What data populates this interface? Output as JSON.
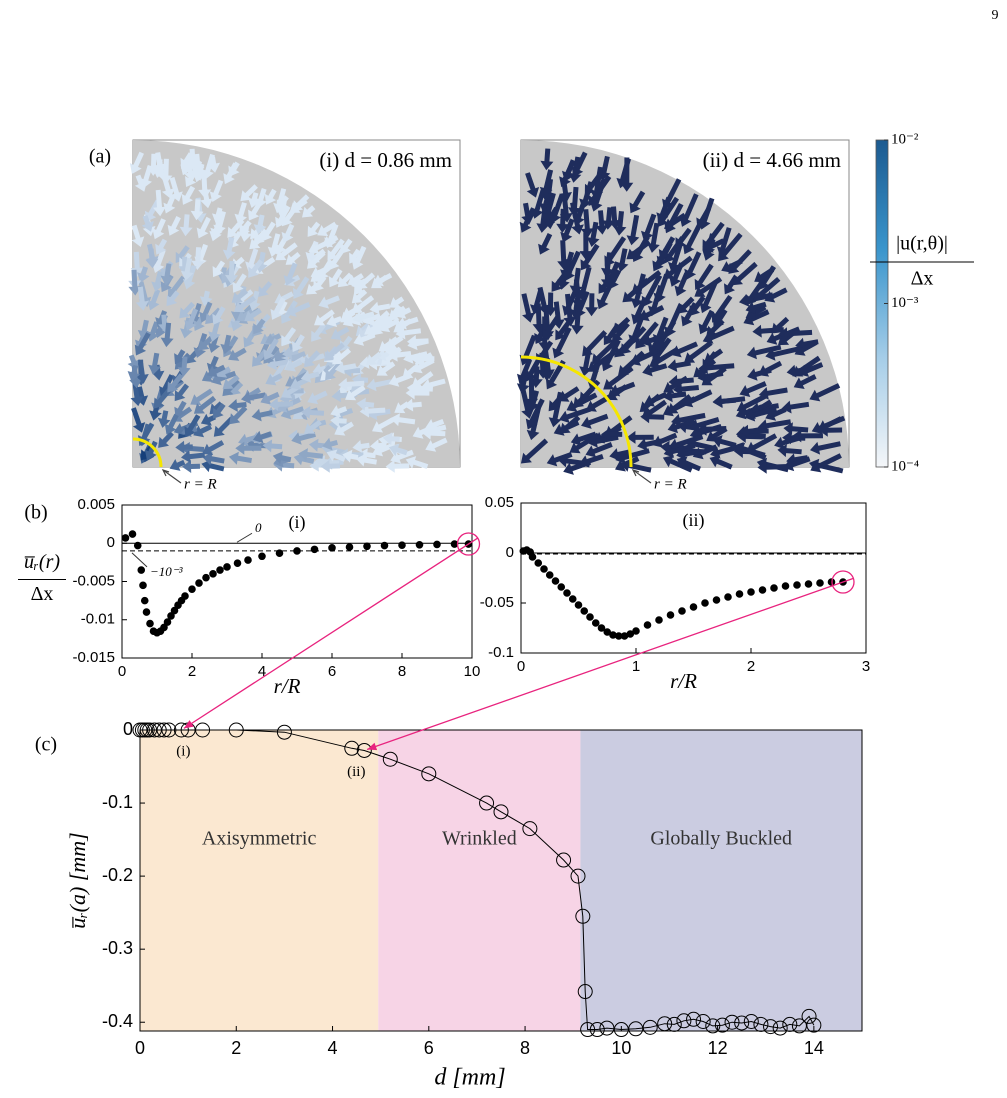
{
  "page_number": "9",
  "panel_labels": [
    "(a)",
    "(b)",
    "(c)"
  ],
  "chart_data": [
    {
      "type": "quiver",
      "title": "(i) d = 0.86 mm",
      "annotation": "r = R",
      "colors": [
        "#163f7a",
        "#dbe8f5"
      ]
    },
    {
      "type": "quiver",
      "title": "(ii) d = 4.66 mm",
      "annotation": "r = R",
      "colors": [
        "#1f2d5c",
        "#1f2d5c"
      ]
    },
    {
      "type": "colorbar",
      "label": [
        "|u(r,θ)|",
        "Δx"
      ],
      "log_scale": true,
      "ylim": [
        0.0001,
        0.01
      ],
      "yticks": [
        {
          "value": 0.01,
          "label": "10⁻²"
        },
        {
          "value": 0.001,
          "label": "10⁻³"
        },
        {
          "value": 0.0001,
          "label": "10⁻⁴"
        }
      ],
      "colors": [
        "#f4f6f9",
        "#a5cde8",
        "#3a95cc",
        "#1c5a90"
      ]
    },
    {
      "type": "scatter",
      "title": "(i)",
      "xlabel": "r/R",
      "ylabel": [
        "u̅ᵣ(r)",
        "Δx"
      ],
      "marker": "filled",
      "x": [
        0.1,
        0.3,
        0.45,
        0.55,
        0.6,
        0.65,
        0.7,
        0.8,
        0.9,
        1.0,
        1.1,
        1.2,
        1.3,
        1.4,
        1.5,
        1.6,
        1.7,
        1.8,
        2.0,
        2.2,
        2.4,
        2.6,
        2.8,
        3.0,
        3.3,
        3.6,
        4.0,
        4.5,
        5.0,
        5.5,
        6.0,
        6.5,
        7.0,
        7.5,
        8.0,
        8.5,
        9.0,
        9.5,
        9.9
      ],
      "values": [
        0.0007,
        0.0012,
        -0.0003,
        -0.0035,
        -0.0055,
        -0.0075,
        -0.009,
        -0.0105,
        -0.0115,
        -0.0117,
        -0.0115,
        -0.011,
        -0.0103,
        -0.0095,
        -0.0088,
        -0.0081,
        -0.0075,
        -0.0069,
        -0.006,
        -0.0052,
        -0.0045,
        -0.004,
        -0.0035,
        -0.0031,
        -0.0026,
        -0.0022,
        -0.0017,
        -0.0013,
        -0.001,
        -0.0008,
        -0.0006,
        -0.0005,
        -0.0004,
        -0.0003,
        -0.00025,
        -0.0002,
        -0.00015,
        -0.0001,
        -0.0001
      ],
      "xlim": [
        0,
        10
      ],
      "xticks": [
        0,
        2,
        4,
        6,
        8,
        10
      ],
      "ylim": [
        -0.015,
        0.005
      ],
      "yticks": [
        0.005,
        0,
        -0.005,
        -0.01,
        -0.015
      ],
      "hlines": [
        {
          "value": 0,
          "label": "0",
          "style": "solid"
        },
        {
          "value": -0.001,
          "label": "−10⁻³",
          "style": "dashed"
        }
      ]
    },
    {
      "type": "scatter",
      "title": "(ii)",
      "xlabel": "r/R",
      "marker": "filled",
      "x": [
        0.02,
        0.05,
        0.08,
        0.1,
        0.15,
        0.2,
        0.25,
        0.3,
        0.35,
        0.4,
        0.45,
        0.5,
        0.55,
        0.6,
        0.65,
        0.7,
        0.75,
        0.8,
        0.85,
        0.9,
        0.95,
        1.0,
        1.1,
        1.2,
        1.3,
        1.4,
        1.5,
        1.6,
        1.7,
        1.8,
        1.9,
        2.0,
        2.1,
        2.2,
        2.3,
        2.4,
        2.5,
        2.6,
        2.7,
        2.8
      ],
      "values": [
        0.002,
        0.003,
        0.001,
        -0.004,
        -0.01,
        -0.016,
        -0.022,
        -0.028,
        -0.034,
        -0.04,
        -0.046,
        -0.052,
        -0.058,
        -0.064,
        -0.07,
        -0.075,
        -0.079,
        -0.082,
        -0.083,
        -0.083,
        -0.081,
        -0.078,
        -0.072,
        -0.067,
        -0.062,
        -0.058,
        -0.054,
        -0.05,
        -0.047,
        -0.044,
        -0.041,
        -0.039,
        -0.037,
        -0.035,
        -0.033,
        -0.032,
        -0.031,
        -0.03,
        -0.029,
        -0.029
      ],
      "xlim": [
        0,
        3
      ],
      "xticks": [
        0,
        1,
        2,
        3
      ],
      "ylim": [
        -0.1,
        0.05
      ],
      "yticks": [
        0.05,
        0,
        -0.05,
        -0.1
      ],
      "hlines": [
        {
          "value": 0,
          "style": "solid"
        },
        {
          "value": -0.001,
          "style": "dashed"
        }
      ]
    },
    {
      "type": "line",
      "xlabel": "d [mm]",
      "ylabel": "u̅ᵣ(a) [mm]",
      "marker": "open",
      "x": [
        0,
        0.05,
        0.1,
        0.15,
        0.2,
        0.3,
        0.4,
        0.5,
        0.6,
        0.86,
        1,
        1.3,
        2,
        3,
        4.4,
        4.66,
        5.2,
        6,
        7.2,
        7.5,
        8.1,
        8.8,
        9.1,
        9.2,
        9.25,
        9.3,
        9.5,
        9.7,
        10,
        10.3,
        10.6,
        10.9,
        11.1,
        11.3,
        11.5,
        11.7,
        11.9,
        12.1,
        12.3,
        12.5,
        12.7,
        12.9,
        13.1,
        13.3,
        13.5,
        13.7,
        13.9,
        14
      ],
      "values": [
        0,
        0,
        0,
        0,
        0,
        0,
        0,
        0,
        0,
        0,
        0,
        0,
        0,
        -0.003,
        -0.025,
        -0.028,
        -0.04,
        -0.06,
        -0.1,
        -0.112,
        -0.135,
        -0.178,
        -0.2,
        -0.255,
        -0.358,
        -0.41,
        -0.41,
        -0.408,
        -0.41,
        -0.409,
        -0.407,
        -0.402,
        -0.403,
        -0.398,
        -0.396,
        -0.399,
        -0.405,
        -0.404,
        -0.4,
        -0.401,
        -0.399,
        -0.403,
        -0.406,
        -0.408,
        -0.403,
        -0.405,
        -0.392,
        -0.404
      ],
      "xlim": [
        0,
        15
      ],
      "xticks": [
        0,
        2,
        4,
        6,
        8,
        10,
        12,
        14
      ],
      "ylim": [
        -0.412,
        0
      ],
      "yticks": [
        0,
        -0.1,
        -0.2,
        -0.3,
        -0.4
      ],
      "regions": [
        {
          "name": "Axisymmetric",
          "start": 0,
          "end": 4.95,
          "color": "#fbe8d1"
        },
        {
          "name": "Wrinkled",
          "start": 4.95,
          "end": 9.15,
          "color": "#f7d4e6"
        },
        {
          "name": "Globally Buckled",
          "start": 9.15,
          "end": 15,
          "color": "#cbcce1"
        }
      ],
      "annotations": [
        "(i)",
        "(ii)"
      ]
    }
  ]
}
